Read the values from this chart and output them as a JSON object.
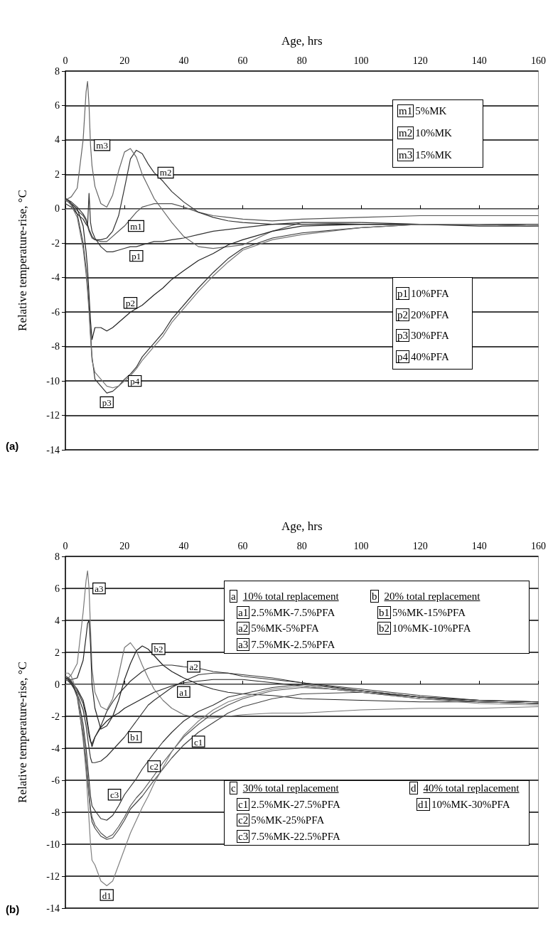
{
  "chart_data": [
    {
      "type": "line",
      "xlabel": "Age, hrs",
      "ylabel": "Relative temperature-rise, °C",
      "xlim": [
        0,
        160
      ],
      "xticks": [
        0,
        20,
        40,
        60,
        80,
        100,
        120,
        140,
        160
      ],
      "ylim": [
        -14,
        8
      ],
      "yticks": [
        -14,
        -12,
        -10,
        -8,
        -6,
        -4,
        -2,
        0,
        2,
        4,
        6,
        8
      ],
      "grid": "y",
      "legend": false,
      "x": [
        0,
        1,
        2,
        4,
        6,
        7,
        7.5,
        8,
        8.5,
        9,
        10,
        12,
        14,
        16,
        18,
        20,
        22,
        24,
        26,
        28,
        30,
        33,
        36,
        40,
        45,
        50,
        55,
        60,
        70,
        80,
        100,
        120,
        140,
        160
      ],
      "series": [
        {
          "name": "m1",
          "color": "#555555",
          "values": [
            0.6,
            0.4,
            0.2,
            -0.1,
            -0.4,
            -0.7,
            -1.0,
            -1.3,
            -1.5,
            -1.7,
            -1.8,
            -1.9,
            -1.9,
            -1.6,
            -1.3,
            -1.0,
            -0.6,
            -0.2,
            0.1,
            0.2,
            0.3,
            0.3,
            0.3,
            0.1,
            -0.2,
            -0.4,
            -0.5,
            -0.6,
            -0.7,
            -0.6,
            -0.5,
            -0.4,
            -0.4,
            -0.4
          ]
        },
        {
          "name": "m2",
          "color": "#333333",
          "values": [
            0.6,
            0.5,
            0.4,
            0.1,
            -0.3,
            -0.6,
            -0.9,
            -1.2,
            -1.4,
            -1.6,
            -1.8,
            -1.8,
            -1.7,
            -1.3,
            -0.4,
            1.2,
            2.9,
            3.4,
            3.2,
            2.6,
            2.1,
            1.6,
            1.0,
            0.4,
            -0.2,
            -0.5,
            -0.7,
            -0.8,
            -0.9,
            -0.8,
            -0.8,
            -0.9,
            -0.9,
            -1.0
          ]
        },
        {
          "name": "m3",
          "color": "#666666",
          "values": [
            0.5,
            0.6,
            0.7,
            1.2,
            4.0,
            6.8,
            7.4,
            6.0,
            3.7,
            2.5,
            1.3,
            0.3,
            0.1,
            0.8,
            2.2,
            3.3,
            3.5,
            3.0,
            2.0,
            1.3,
            0.6,
            -0.1,
            -0.8,
            -1.6,
            -2.2,
            -2.3,
            -2.2,
            -2.1,
            -1.3,
            -0.8,
            -0.9,
            -0.9,
            -0.9,
            -1.0
          ]
        },
        {
          "name": "p1",
          "color": "#333333",
          "values": [
            0.3,
            0.2,
            0.1,
            -0.3,
            -0.6,
            -0.9,
            -1.0,
            0.9,
            -0.8,
            -1.3,
            -1.7,
            -2.2,
            -2.5,
            -2.5,
            -2.4,
            -2.3,
            -2.2,
            -2.2,
            -2.1,
            -2.0,
            -1.9,
            -1.9,
            -1.8,
            -1.7,
            -1.5,
            -1.3,
            -1.2,
            -1.1,
            -0.9,
            -0.9,
            -0.9,
            -0.9,
            -0.9,
            -1.0
          ]
        },
        {
          "name": "p2",
          "color": "#222222",
          "values": [
            0.5,
            0.4,
            0.3,
            0.0,
            -1.0,
            -2.5,
            -3.5,
            -5.0,
            -6.5,
            -7.6,
            -6.9,
            -6.9,
            -7.1,
            -6.9,
            -6.6,
            -6.3,
            -6.0,
            -5.8,
            -5.6,
            -5.3,
            -5.0,
            -4.6,
            -4.1,
            -3.6,
            -3.0,
            -2.6,
            -2.1,
            -1.8,
            -1.3,
            -1.0,
            -0.9,
            -0.9,
            -1.0,
            -1.0
          ]
        },
        {
          "name": "p3",
          "color": "#333333",
          "values": [
            0.6,
            0.5,
            0.3,
            -0.3,
            -2.0,
            -3.5,
            -4.5,
            -5.7,
            -7.2,
            -8.6,
            -9.9,
            -10.3,
            -10.7,
            -10.6,
            -10.3,
            -9.9,
            -9.6,
            -9.2,
            -8.6,
            -8.2,
            -7.8,
            -7.2,
            -6.4,
            -5.6,
            -4.6,
            -3.7,
            -2.9,
            -2.3,
            -1.7,
            -1.4,
            -1.1,
            -0.9,
            -0.9,
            -0.9
          ]
        },
        {
          "name": "p4",
          "color": "#777777",
          "values": [
            0.5,
            0.4,
            0.2,
            -0.5,
            -2.3,
            -3.8,
            -4.8,
            -6.0,
            -7.5,
            -8.8,
            -9.5,
            -9.9,
            -10.3,
            -10.4,
            -10.3,
            -10.0,
            -9.7,
            -9.3,
            -8.8,
            -8.4,
            -8.0,
            -7.4,
            -6.6,
            -5.8,
            -4.8,
            -3.9,
            -3.1,
            -2.4,
            -1.8,
            -1.5,
            -1.1,
            -0.9,
            -0.9,
            -1.0
          ]
        }
      ],
      "annotations": [
        "m1 5%MK",
        "m2 10%MK",
        "m3 15%MK",
        "p1 10%PFA",
        "p2 20%PFA",
        "p3 30%PFA",
        "p4 40%PFA",
        "(a)"
      ]
    },
    {
      "type": "line",
      "xlabel": "Age, hrs",
      "ylabel": "Relative temperature-rise, °C",
      "xlim": [
        0,
        160
      ],
      "xticks": [
        0,
        20,
        40,
        60,
        80,
        100,
        120,
        140,
        160
      ],
      "ylim": [
        -14,
        8
      ],
      "yticks": [
        -14,
        -12,
        -10,
        -8,
        -6,
        -4,
        -2,
        0,
        2,
        4,
        6,
        8
      ],
      "grid": "y",
      "legend": false,
      "x": [
        0,
        1,
        2,
        4,
        6,
        7,
        7.5,
        8,
        8.5,
        9,
        10,
        12,
        14,
        16,
        18,
        20,
        22,
        24,
        26,
        28,
        30,
        33,
        36,
        40,
        45,
        50,
        55,
        60,
        70,
        80,
        100,
        120,
        140,
        160
      ],
      "series": [
        {
          "name": "a1",
          "color": "#222222",
          "values": [
            0.5,
            0.4,
            0.2,
            -0.3,
            -1.0,
            -1.8,
            -2.4,
            -3.0,
            -3.5,
            -3.9,
            -3.3,
            -2.7,
            -2.3,
            -2.0,
            -1.8,
            -1.5,
            -1.3,
            -1.1,
            -0.9,
            -0.7,
            -0.5,
            -0.3,
            -0.1,
            0.1,
            0.2,
            0.3,
            0.3,
            0.3,
            0.1,
            -0.1,
            -0.5,
            -0.8,
            -1.0,
            -1.1
          ]
        },
        {
          "name": "a2",
          "color": "#333333",
          "values": [
            0.4,
            0.3,
            0.1,
            -0.4,
            -1.2,
            -2.0,
            -2.6,
            -3.2,
            -3.6,
            -3.7,
            -3.3,
            -2.6,
            -1.7,
            -1.1,
            -0.6,
            -0.2,
            0.2,
            0.5,
            0.8,
            1.0,
            1.1,
            1.2,
            1.2,
            1.1,
            1.0,
            0.8,
            0.7,
            0.6,
            0.4,
            0.1,
            -0.4,
            -0.8,
            -1.1,
            -1.2
          ]
        },
        {
          "name": "a3",
          "color": "#777777",
          "values": [
            0.3,
            0.4,
            0.6,
            1.3,
            4.5,
            6.5,
            7.1,
            6.0,
            3.5,
            1.0,
            -0.5,
            -1.4,
            -1.6,
            -0.9,
            0.6,
            2.3,
            2.6,
            2.1,
            1.2,
            0.4,
            -0.3,
            -1.0,
            -1.5,
            -1.9,
            -2.1,
            -2.1,
            -2.0,
            -1.9,
            -1.8,
            -1.8,
            -1.6,
            -1.5,
            -1.5,
            -1.4
          ]
        },
        {
          "name": "b1",
          "color": "#333333",
          "values": [
            0.3,
            0.2,
            0.0,
            -0.6,
            -1.6,
            -2.6,
            -3.3,
            -4.0,
            -4.6,
            -4.9,
            -4.9,
            -4.8,
            -4.5,
            -4.1,
            -3.7,
            -3.3,
            -2.8,
            -2.3,
            -1.8,
            -1.3,
            -1.0,
            -0.6,
            -0.2,
            0.2,
            0.6,
            0.7,
            0.7,
            0.5,
            0.3,
            0.1,
            -0.3,
            -0.7,
            -1.0,
            -1.1
          ]
        },
        {
          "name": "b2",
          "color": "#222222",
          "values": [
            0.4,
            0.3,
            0.3,
            0.4,
            1.5,
            3.0,
            3.8,
            4.0,
            2.5,
            0.0,
            -1.5,
            -2.8,
            -2.6,
            -2.0,
            -1.0,
            0.3,
            1.3,
            2.1,
            2.4,
            2.2,
            1.8,
            1.2,
            0.8,
            0.4,
            0.0,
            -0.3,
            -0.5,
            -0.6,
            -0.7,
            -0.9,
            -1.0,
            -1.1,
            -1.1,
            -1.2
          ]
        },
        {
          "name": "c1",
          "color": "#444444",
          "values": [
            0.5,
            0.4,
            0.2,
            -0.8,
            -3.3,
            -5.0,
            -6.0,
            -7.0,
            -8.0,
            -8.6,
            -9.0,
            -9.5,
            -9.7,
            -9.6,
            -9.1,
            -8.5,
            -7.8,
            -7.4,
            -7.0,
            -6.5,
            -6.0,
            -5.3,
            -4.6,
            -3.8,
            -3.0,
            -2.4,
            -1.8,
            -1.4,
            -0.9,
            -0.6,
            -0.5,
            -0.9,
            -1.1,
            -1.2
          ]
        },
        {
          "name": "c2",
          "color": "#555555",
          "values": [
            0.5,
            0.4,
            0.2,
            -0.7,
            -3.0,
            -4.8,
            -5.8,
            -6.9,
            -7.8,
            -8.3,
            -8.8,
            -9.3,
            -9.6,
            -9.4,
            -8.9,
            -8.3,
            -7.6,
            -7.1,
            -6.7,
            -6.2,
            -5.7,
            -4.9,
            -4.2,
            -3.3,
            -2.5,
            -1.8,
            -1.3,
            -0.9,
            -0.4,
            -0.2,
            -0.4,
            -0.8,
            -1.1,
            -1.2
          ]
        },
        {
          "name": "c3",
          "color": "#333333",
          "values": [
            0.4,
            0.3,
            0.1,
            -0.6,
            -2.5,
            -4.0,
            -5.0,
            -6.0,
            -7.0,
            -7.6,
            -7.9,
            -8.4,
            -8.5,
            -8.2,
            -7.6,
            -6.9,
            -6.4,
            -5.9,
            -5.3,
            -4.8,
            -4.3,
            -3.6,
            -3.0,
            -2.3,
            -1.7,
            -1.3,
            -0.8,
            -0.6,
            -0.2,
            0.0,
            -0.4,
            -0.8,
            -1.0,
            -1.1
          ]
        },
        {
          "name": "d1",
          "color": "#808080",
          "values": [
            0.7,
            0.7,
            0.5,
            -0.5,
            -3.5,
            -5.5,
            -7.0,
            -8.5,
            -10.0,
            -11.0,
            -11.3,
            -12.3,
            -12.6,
            -12.3,
            -11.3,
            -10.3,
            -9.3,
            -8.5,
            -7.7,
            -7.0,
            -6.2,
            -5.2,
            -4.2,
            -3.2,
            -2.3,
            -1.6,
            -1.1,
            -0.8,
            -0.3,
            -0.1,
            -0.5,
            -0.9,
            -1.2,
            -1.3
          ]
        }
      ],
      "annotations": [
        "a 10% total replacement",
        "a1 2.5%MK-7.5%PFA",
        "a2 5%MK-5%PFA",
        "a3 7.5%MK-2.5%PFA",
        "b 20% total replacement",
        "b1 5%MK-15%PFA",
        "b2 10%MK-10%PFA",
        "c 30% total replacement",
        "c1 2.5%MK-27.5%PFA",
        "c2 5%MK-25%PFA",
        "c3 7.5%MK-22.5%PFA",
        "d 40% total replacement",
        "d1 10%MK-30%PFA",
        "(b)"
      ]
    }
  ]
}
